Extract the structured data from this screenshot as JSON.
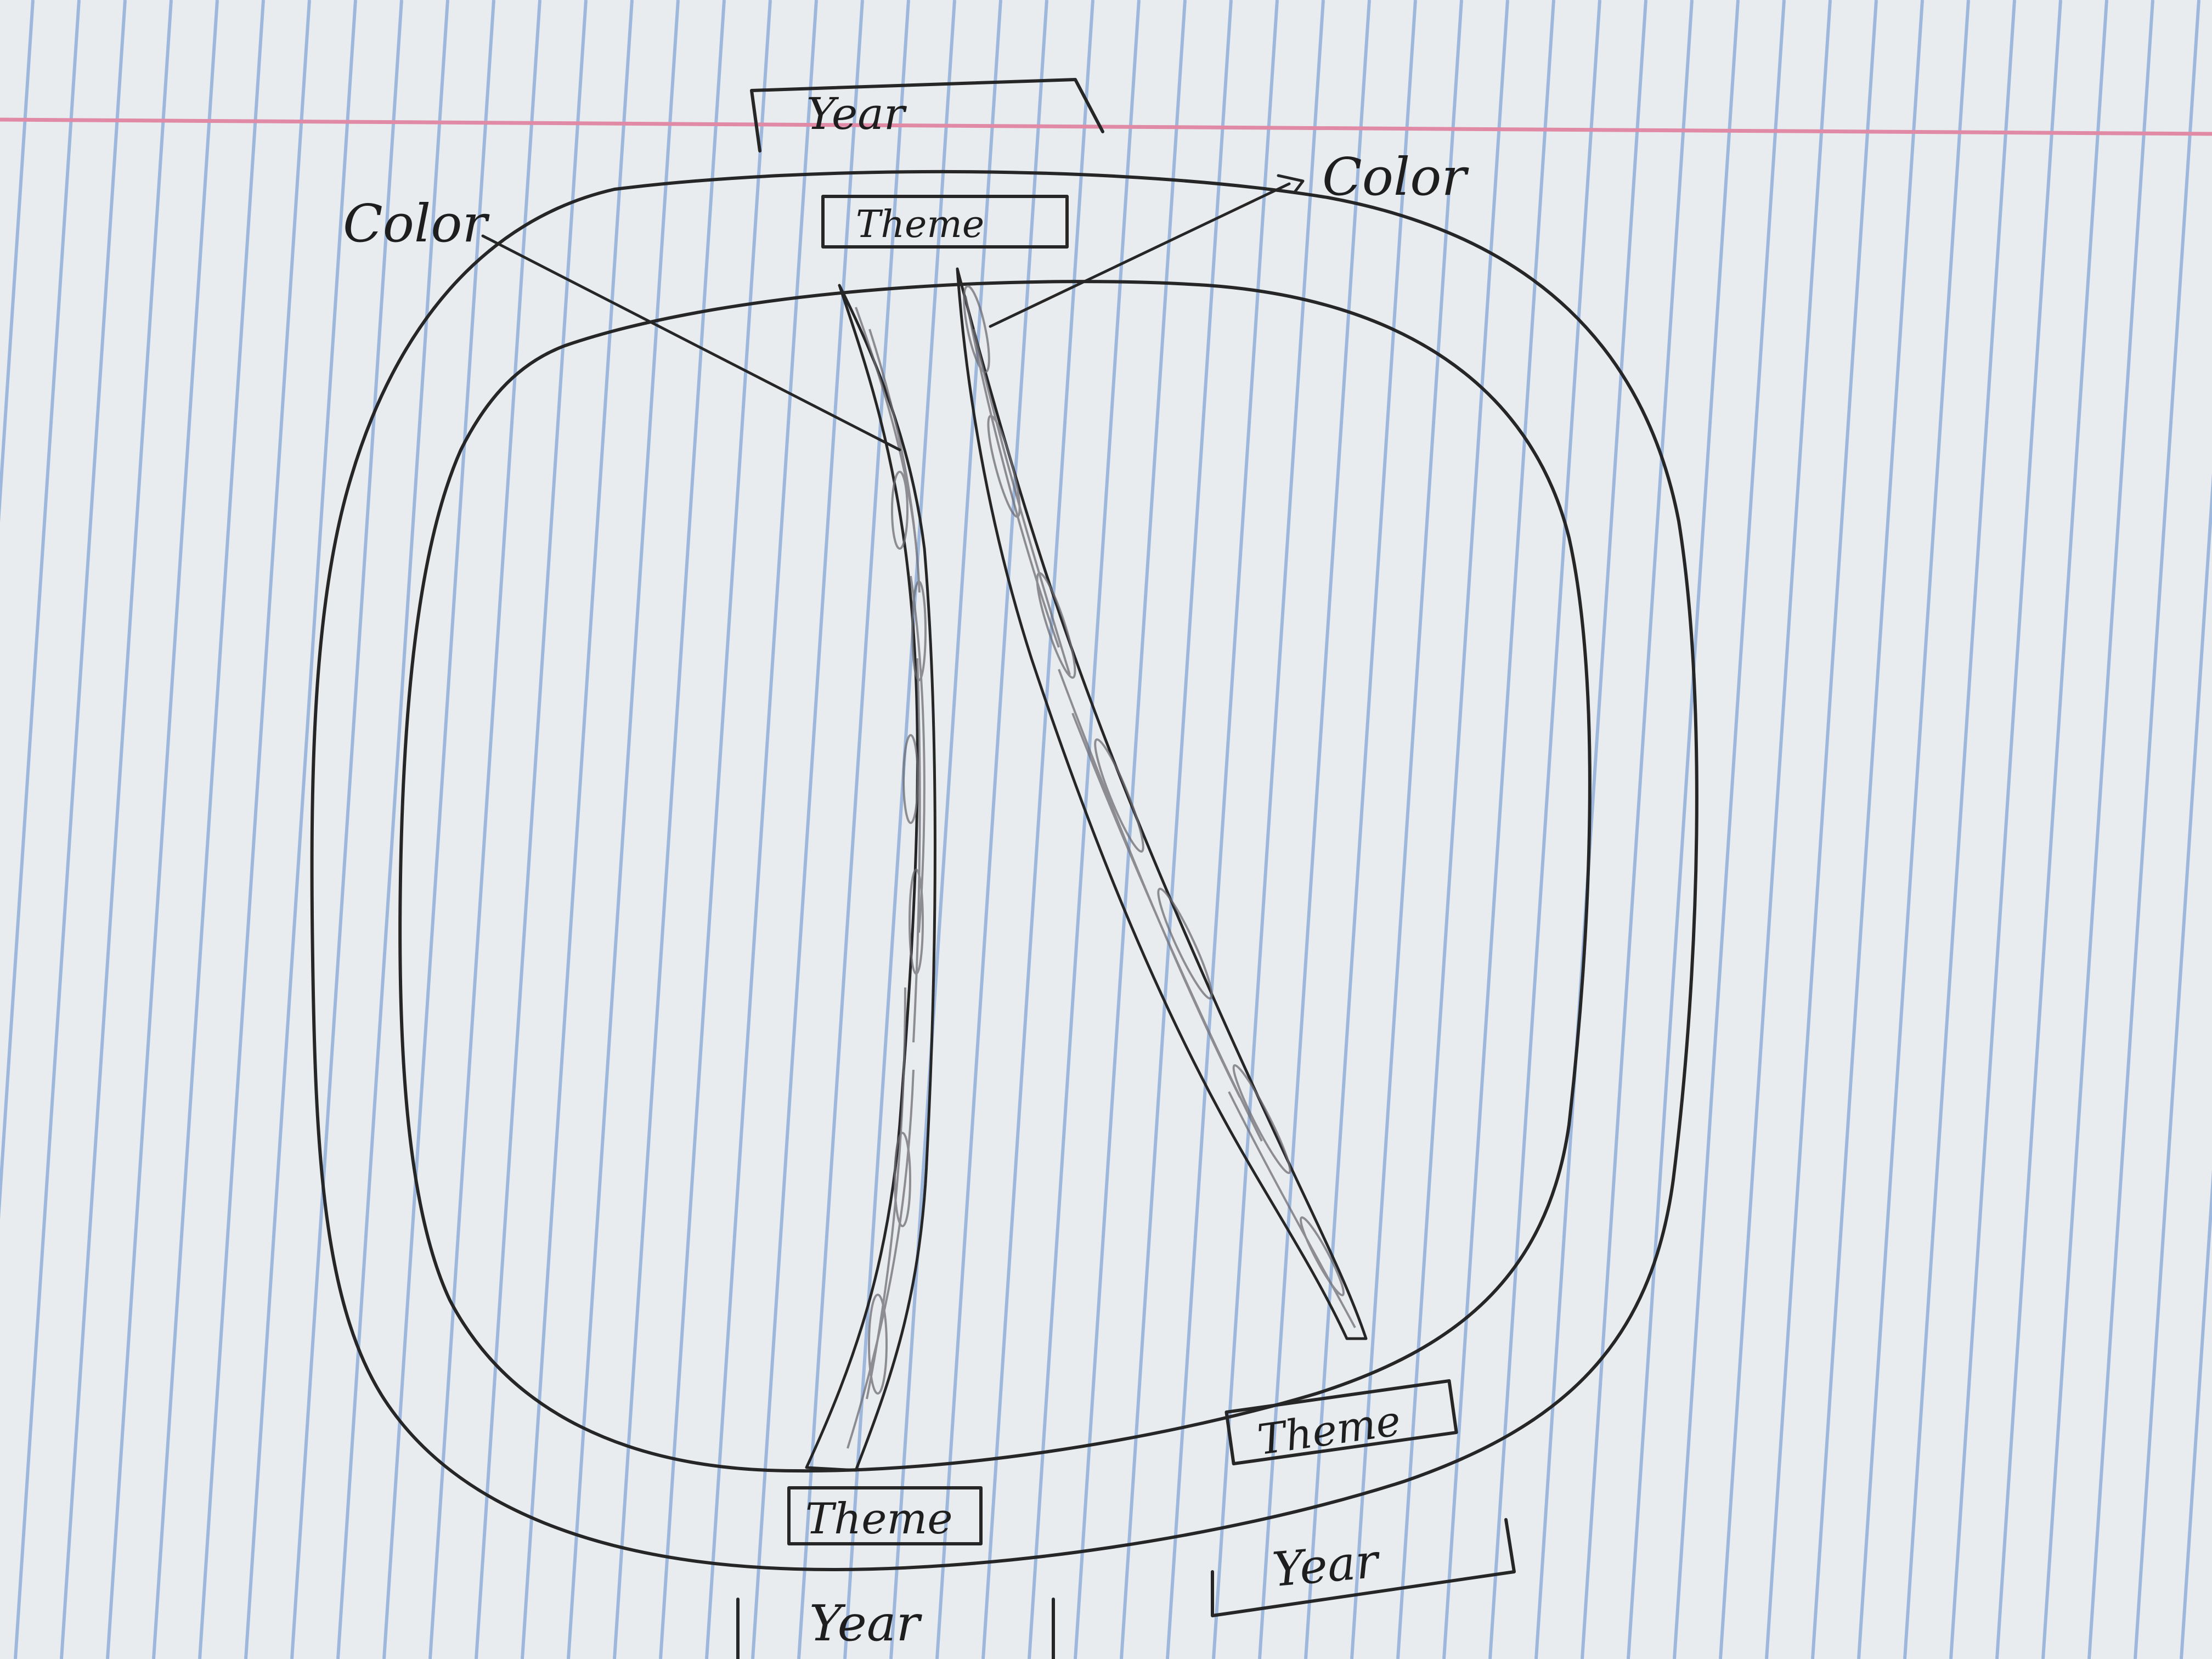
{
  "diagram": {
    "top": {
      "year_label": "Year",
      "theme_label": "Theme",
      "color_left_label": "Color",
      "color_right_label": "Color"
    },
    "bottom_left": {
      "theme_label": "Theme",
      "year_label": "Year"
    },
    "bottom_right": {
      "theme_label": "Theme",
      "year_label": "Year"
    }
  },
  "colors": {
    "paper": "#e9ecef",
    "ruled_line": "#9db8dc",
    "margin_line": "#e08aa6",
    "ink": "#262626",
    "shading": "#6d6d73"
  }
}
